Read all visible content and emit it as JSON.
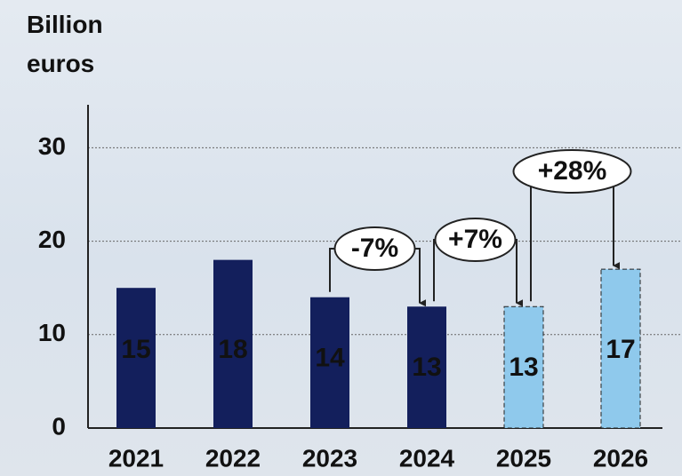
{
  "chart_data": {
    "type": "bar",
    "ylabel": "Billion euros",
    "categories": [
      "2021",
      "2022",
      "2023",
      "2024",
      "2025",
      "2026"
    ],
    "values": [
      15,
      18,
      14,
      13,
      13,
      17
    ],
    "colors": [
      "#131f5c",
      "#131f5c",
      "#131f5c",
      "#131f5c",
      "#8fc9ec",
      "#8fc9ec"
    ],
    "dashed": [
      false,
      false,
      false,
      false,
      true,
      true
    ],
    "ylim": [
      0,
      34.6
    ],
    "yticks": [
      0,
      10,
      20,
      30
    ],
    "grid": true,
    "annotations": [
      {
        "text": "-7%",
        "from": "2023",
        "to": "2024"
      },
      {
        "text": "+7%",
        "from": "2024",
        "to": "2025"
      },
      {
        "text": "+28%",
        "from": "2025",
        "to": "2026"
      }
    ]
  }
}
